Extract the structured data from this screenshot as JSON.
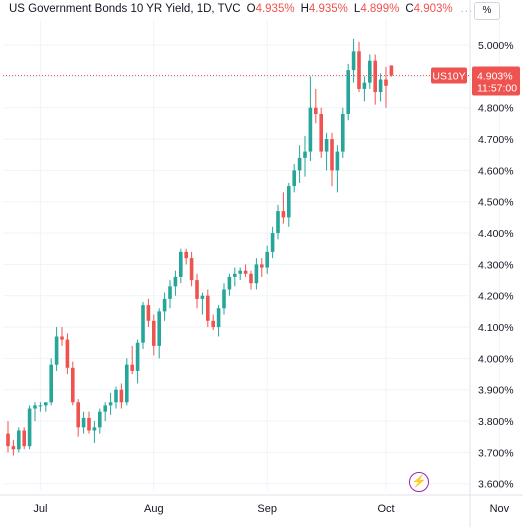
{
  "header": {
    "title": "US Government Bonds 10 YR Yield, 1D, TVC",
    "open_label": "O",
    "open_value": "4.935%",
    "high_label": "H",
    "high_value": "4.935%",
    "low_label": "L",
    "low_value": "4.899%",
    "close_label": "C",
    "close_value": "4.903%",
    "more": "...",
    "scale_mode": "%"
  },
  "colors": {
    "up": "#26a69a",
    "down": "#ef5350",
    "price_line": "#ef5350",
    "grid": "#f0f3fa",
    "axis_text": "#131722",
    "events_icon": "#9c27b0"
  },
  "icons": {
    "events": "lightning-bolt-icon"
  },
  "chart_data": {
    "type": "candlestick",
    "symbol_label": "US10Y",
    "last_price_label": "4.903%",
    "countdown": "11:57:00",
    "y_axis": {
      "ticks": [
        "3.600%",
        "3.700%",
        "3.800%",
        "3.900%",
        "4.000%",
        "4.100%",
        "4.200%",
        "4.300%",
        "4.400%",
        "4.500%",
        "4.600%",
        "4.700%",
        "4.800%",
        "4.900%",
        "5.000%"
      ],
      "ylim": [
        3.58,
        5.08
      ]
    },
    "x_axis": {
      "ticks": [
        "Jul",
        "Aug",
        "Sep",
        "Oct",
        "Nov"
      ],
      "tick_index": [
        6,
        27,
        48,
        70,
        91
      ]
    },
    "grid": true,
    "candles": [
      [
        3.76,
        3.8,
        3.7,
        3.72
      ],
      [
        3.72,
        3.74,
        3.69,
        3.71
      ],
      [
        3.71,
        3.78,
        3.7,
        3.77
      ],
      [
        3.77,
        3.78,
        3.71,
        3.72
      ],
      [
        3.72,
        3.85,
        3.71,
        3.84
      ],
      [
        3.84,
        3.86,
        3.8,
        3.85
      ],
      [
        3.85,
        3.86,
        3.83,
        3.85
      ],
      [
        3.85,
        3.86,
        3.83,
        3.86
      ],
      [
        3.86,
        4.0,
        3.85,
        3.98
      ],
      [
        3.98,
        4.1,
        3.96,
        4.07
      ],
      [
        4.07,
        4.1,
        4.04,
        4.06
      ],
      [
        4.06,
        4.08,
        3.95,
        3.97
      ],
      [
        3.97,
        3.99,
        3.85,
        3.86
      ],
      [
        3.86,
        3.87,
        3.75,
        3.78
      ],
      [
        3.78,
        3.83,
        3.76,
        3.81
      ],
      [
        3.81,
        3.83,
        3.76,
        3.77
      ],
      [
        3.77,
        3.8,
        3.73,
        3.78
      ],
      [
        3.78,
        3.84,
        3.76,
        3.83
      ],
      [
        3.83,
        3.86,
        3.8,
        3.85
      ],
      [
        3.85,
        3.89,
        3.82,
        3.86
      ],
      [
        3.86,
        3.91,
        3.84,
        3.9
      ],
      [
        3.9,
        3.92,
        3.84,
        3.86
      ],
      [
        3.86,
        4.0,
        3.85,
        3.98
      ],
      [
        3.98,
        4.04,
        3.95,
        3.96
      ],
      [
        3.96,
        4.06,
        3.92,
        4.05
      ],
      [
        4.05,
        4.18,
        4.03,
        4.17
      ],
      [
        4.17,
        4.19,
        4.1,
        4.12
      ],
      [
        4.12,
        4.14,
        4.01,
        4.04
      ],
      [
        4.04,
        4.16,
        4.0,
        4.15
      ],
      [
        4.15,
        4.21,
        4.12,
        4.19
      ],
      [
        4.19,
        4.25,
        4.16,
        4.23
      ],
      [
        4.23,
        4.28,
        4.2,
        4.26
      ],
      [
        4.26,
        4.35,
        4.24,
        4.34
      ],
      [
        4.34,
        4.35,
        4.3,
        4.32
      ],
      [
        4.32,
        4.34,
        4.23,
        4.25
      ],
      [
        4.25,
        4.27,
        4.16,
        4.19
      ],
      [
        4.19,
        4.21,
        4.14,
        4.2
      ],
      [
        4.2,
        4.22,
        4.1,
        4.12
      ],
      [
        4.12,
        4.14,
        4.09,
        4.1
      ],
      [
        4.1,
        4.17,
        4.07,
        4.16
      ],
      [
        4.16,
        4.24,
        4.14,
        4.22
      ],
      [
        4.22,
        4.27,
        4.2,
        4.26
      ],
      [
        4.26,
        4.29,
        4.23,
        4.27
      ],
      [
        4.27,
        4.29,
        4.25,
        4.28
      ],
      [
        4.28,
        4.3,
        4.26,
        4.27
      ],
      [
        4.27,
        4.28,
        4.22,
        4.24
      ],
      [
        4.24,
        4.32,
        4.22,
        4.3
      ],
      [
        4.3,
        4.32,
        4.26,
        4.29
      ],
      [
        4.29,
        4.36,
        4.27,
        4.34
      ],
      [
        4.34,
        4.42,
        4.32,
        4.4
      ],
      [
        4.4,
        4.49,
        4.38,
        4.47
      ],
      [
        4.47,
        4.53,
        4.43,
        4.45
      ],
      [
        4.45,
        4.56,
        4.42,
        4.55
      ],
      [
        4.55,
        4.62,
        4.53,
        4.6
      ],
      [
        4.6,
        4.68,
        4.56,
        4.64
      ],
      [
        4.64,
        4.71,
        4.58,
        4.66
      ],
      [
        4.66,
        4.9,
        4.63,
        4.8
      ],
      [
        4.8,
        4.86,
        4.75,
        4.78
      ],
      [
        4.78,
        4.8,
        4.64,
        4.66
      ],
      [
        4.66,
        4.72,
        4.6,
        4.7
      ],
      [
        4.7,
        4.72,
        4.55,
        4.6
      ],
      [
        4.6,
        4.68,
        4.53,
        4.66
      ],
      [
        4.66,
        4.8,
        4.64,
        4.78
      ],
      [
        4.78,
        4.94,
        4.76,
        4.92
      ],
      [
        4.92,
        5.02,
        4.88,
        4.98
      ],
      [
        4.98,
        5.01,
        4.85,
        4.86
      ],
      [
        4.86,
        4.9,
        4.82,
        4.88
      ],
      [
        4.88,
        4.97,
        4.86,
        4.95
      ],
      [
        4.95,
        4.97,
        4.81,
        4.85
      ],
      [
        4.85,
        4.91,
        4.82,
        4.89
      ],
      [
        4.89,
        4.93,
        4.8,
        4.87
      ],
      [
        4.935,
        4.935,
        4.899,
        4.903
      ]
    ]
  }
}
